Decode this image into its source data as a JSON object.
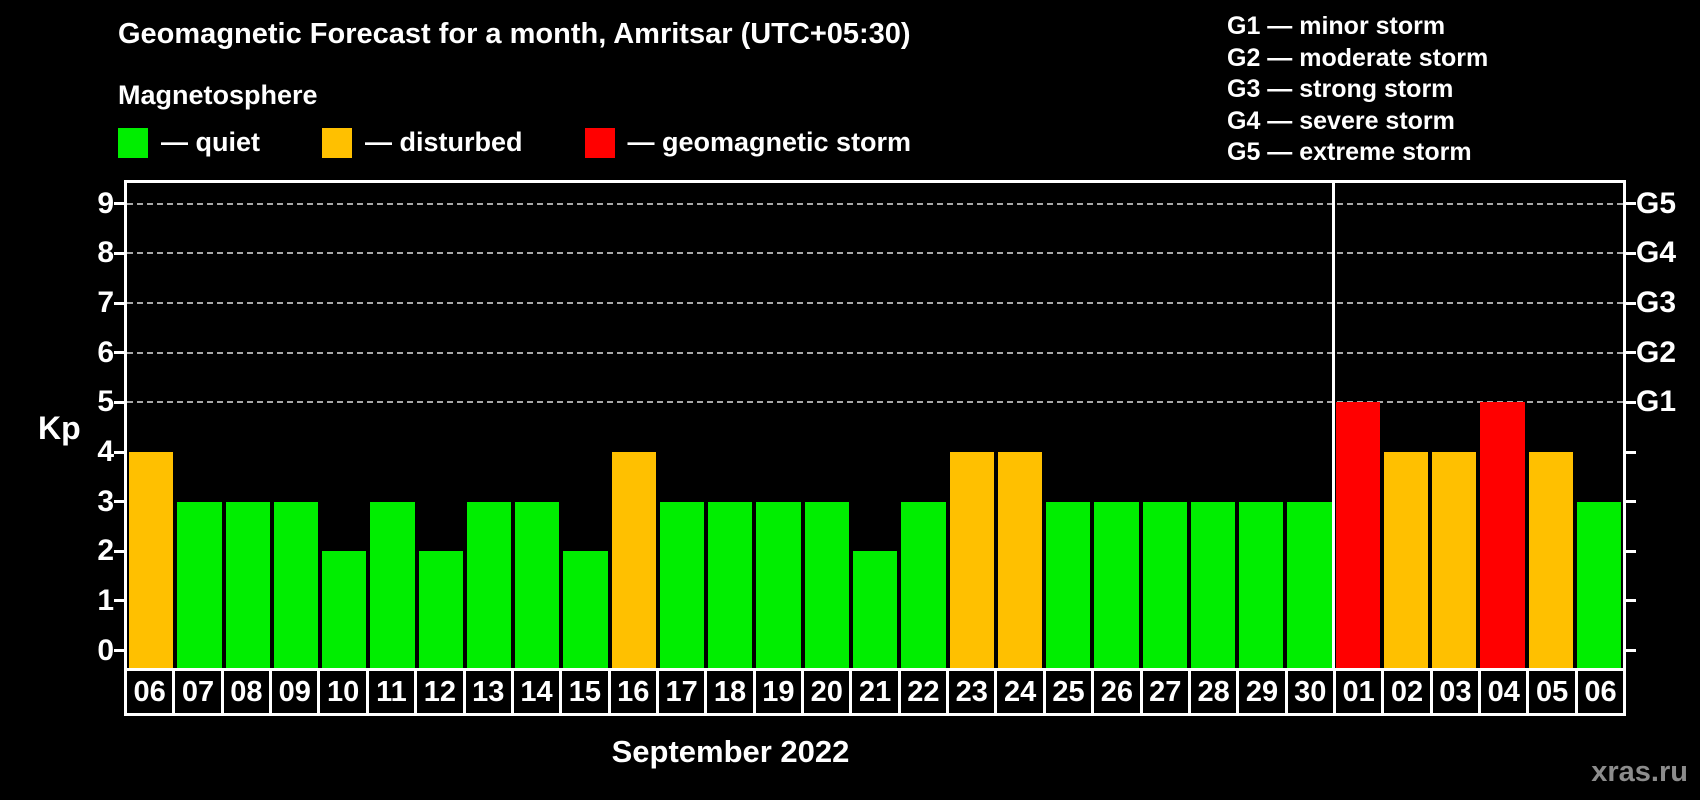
{
  "header": {
    "title": "Geomagnetic Forecast for a month, Amritsar (UTC+05:30)",
    "subtitle": "Magnetosphere"
  },
  "colors": {
    "quiet": "#00ee00",
    "disturbed": "#ffc000",
    "storm": "#ff0000",
    "axis": "#ffffff",
    "grid": "#a8a8a8",
    "watermark": "#8c8c8c"
  },
  "legend": [
    {
      "key": "quiet",
      "label": "— quiet"
    },
    {
      "key": "disturbed",
      "label": "— disturbed"
    },
    {
      "key": "storm",
      "label": "— geomagnetic storm"
    }
  ],
  "g_legend": [
    "G1 — minor storm",
    "G2 — moderate storm",
    "G3 — strong storm",
    "G4 — severe storm",
    "G5 — extreme storm"
  ],
  "watermark": "xras.ru",
  "chart_data": {
    "type": "bar",
    "title": "Geomagnetic Forecast for a month, Amritsar (UTC+05:30)",
    "ylabel": "Kp",
    "xlabel": "September 2022",
    "month_label": "September 2022",
    "ylim": [
      -0.35,
      9.42
    ],
    "yticks": [
      0,
      1,
      2,
      3,
      4,
      5,
      6,
      7,
      8,
      9
    ],
    "gridlines_at": [
      5,
      6,
      7,
      8,
      9
    ],
    "right_axis": [
      {
        "kp": 5,
        "label": "G1"
      },
      {
        "kp": 6,
        "label": "G2"
      },
      {
        "kp": 7,
        "label": "G3"
      },
      {
        "kp": 8,
        "label": "G4"
      },
      {
        "kp": 9,
        "label": "G5"
      }
    ],
    "categories": [
      "06",
      "07",
      "08",
      "09",
      "10",
      "11",
      "12",
      "13",
      "14",
      "15",
      "16",
      "17",
      "18",
      "19",
      "20",
      "21",
      "22",
      "23",
      "24",
      "25",
      "26",
      "27",
      "28",
      "29",
      "30",
      "01",
      "02",
      "03",
      "04",
      "05",
      "06"
    ],
    "values": [
      4,
      3,
      3,
      3,
      2,
      3,
      2,
      3,
      3,
      2,
      4,
      3,
      3,
      3,
      3,
      2,
      3,
      4,
      4,
      3,
      3,
      3,
      3,
      3,
      3,
      5,
      4,
      4,
      5,
      4,
      3
    ],
    "statuses": [
      "disturbed",
      "quiet",
      "quiet",
      "quiet",
      "quiet",
      "quiet",
      "quiet",
      "quiet",
      "quiet",
      "quiet",
      "disturbed",
      "quiet",
      "quiet",
      "quiet",
      "quiet",
      "quiet",
      "quiet",
      "disturbed",
      "disturbed",
      "quiet",
      "quiet",
      "quiet",
      "quiet",
      "quiet",
      "quiet",
      "storm",
      "disturbed",
      "disturbed",
      "storm",
      "disturbed",
      "quiet"
    ],
    "month_separator_before_index": 25
  }
}
